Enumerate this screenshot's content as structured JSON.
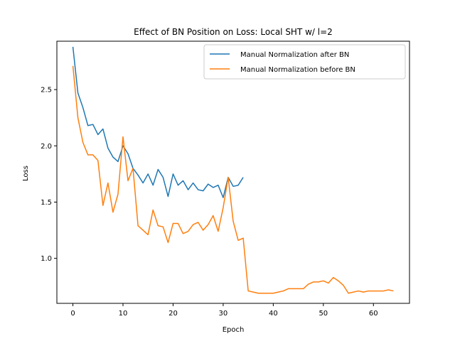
{
  "chart_data": {
    "type": "line",
    "title": "Effect of BN Position on Loss: Local SHT w/ l=2",
    "xlabel": "Epoch",
    "ylabel": "Loss",
    "xlim": [
      -3.2,
      67.2
    ],
    "ylim": [
      0.6,
      2.93
    ],
    "xticks": [
      0,
      10,
      20,
      30,
      40,
      50,
      60
    ],
    "yticks": [
      1.0,
      1.5,
      2.0,
      2.5
    ],
    "xtick_labels": [
      "0",
      "10",
      "20",
      "30",
      "40",
      "50",
      "60"
    ],
    "ytick_labels": [
      "1.0",
      "1.5",
      "2.0",
      "2.5"
    ],
    "grid": false,
    "legend_position": "upper right",
    "series": [
      {
        "name": "Manual Normalization after BN",
        "color": "#1f77b4",
        "x": [
          0,
          1,
          2,
          3,
          4,
          5,
          6,
          7,
          8,
          9,
          10,
          11,
          12,
          13,
          14,
          15,
          16,
          17,
          18,
          19,
          20,
          21,
          22,
          23,
          24,
          25,
          26,
          27,
          28,
          29,
          30,
          31,
          32,
          33,
          34
        ],
        "values": [
          2.88,
          2.47,
          2.34,
          2.18,
          2.19,
          2.1,
          2.15,
          1.98,
          1.9,
          1.86,
          2.0,
          1.93,
          1.8,
          1.74,
          1.67,
          1.75,
          1.65,
          1.79,
          1.72,
          1.55,
          1.75,
          1.65,
          1.69,
          1.61,
          1.67,
          1.61,
          1.6,
          1.66,
          1.63,
          1.65,
          1.54,
          1.72,
          1.64,
          1.65,
          1.72
        ]
      },
      {
        "name": "Manual Normalization before BN",
        "color": "#ff7f0e",
        "x": [
          0,
          1,
          2,
          3,
          4,
          5,
          6,
          7,
          8,
          9,
          10,
          11,
          12,
          13,
          14,
          15,
          16,
          17,
          18,
          19,
          20,
          21,
          22,
          23,
          24,
          25,
          26,
          27,
          28,
          29,
          30,
          31,
          32,
          33,
          34,
          35,
          36,
          37,
          38,
          39,
          40,
          41,
          42,
          43,
          44,
          45,
          46,
          47,
          48,
          49,
          50,
          51,
          52,
          53,
          54,
          55,
          56,
          57,
          58,
          59,
          60,
          61,
          62,
          63,
          64
        ],
        "values": [
          2.71,
          2.25,
          2.03,
          1.92,
          1.92,
          1.87,
          1.47,
          1.67,
          1.41,
          1.57,
          2.08,
          1.69,
          1.8,
          1.29,
          1.25,
          1.21,
          1.43,
          1.29,
          1.28,
          1.14,
          1.31,
          1.31,
          1.22,
          1.24,
          1.3,
          1.32,
          1.25,
          1.3,
          1.38,
          1.24,
          1.45,
          1.72,
          1.33,
          1.16,
          1.18,
          0.71,
          0.7,
          0.69,
          0.69,
          0.69,
          0.69,
          0.7,
          0.71,
          0.73,
          0.73,
          0.73,
          0.73,
          0.77,
          0.79,
          0.79,
          0.8,
          0.78,
          0.83,
          0.8,
          0.76,
          0.69,
          0.7,
          0.71,
          0.7,
          0.71,
          0.71,
          0.71,
          0.71,
          0.72,
          0.71
        ]
      }
    ]
  }
}
